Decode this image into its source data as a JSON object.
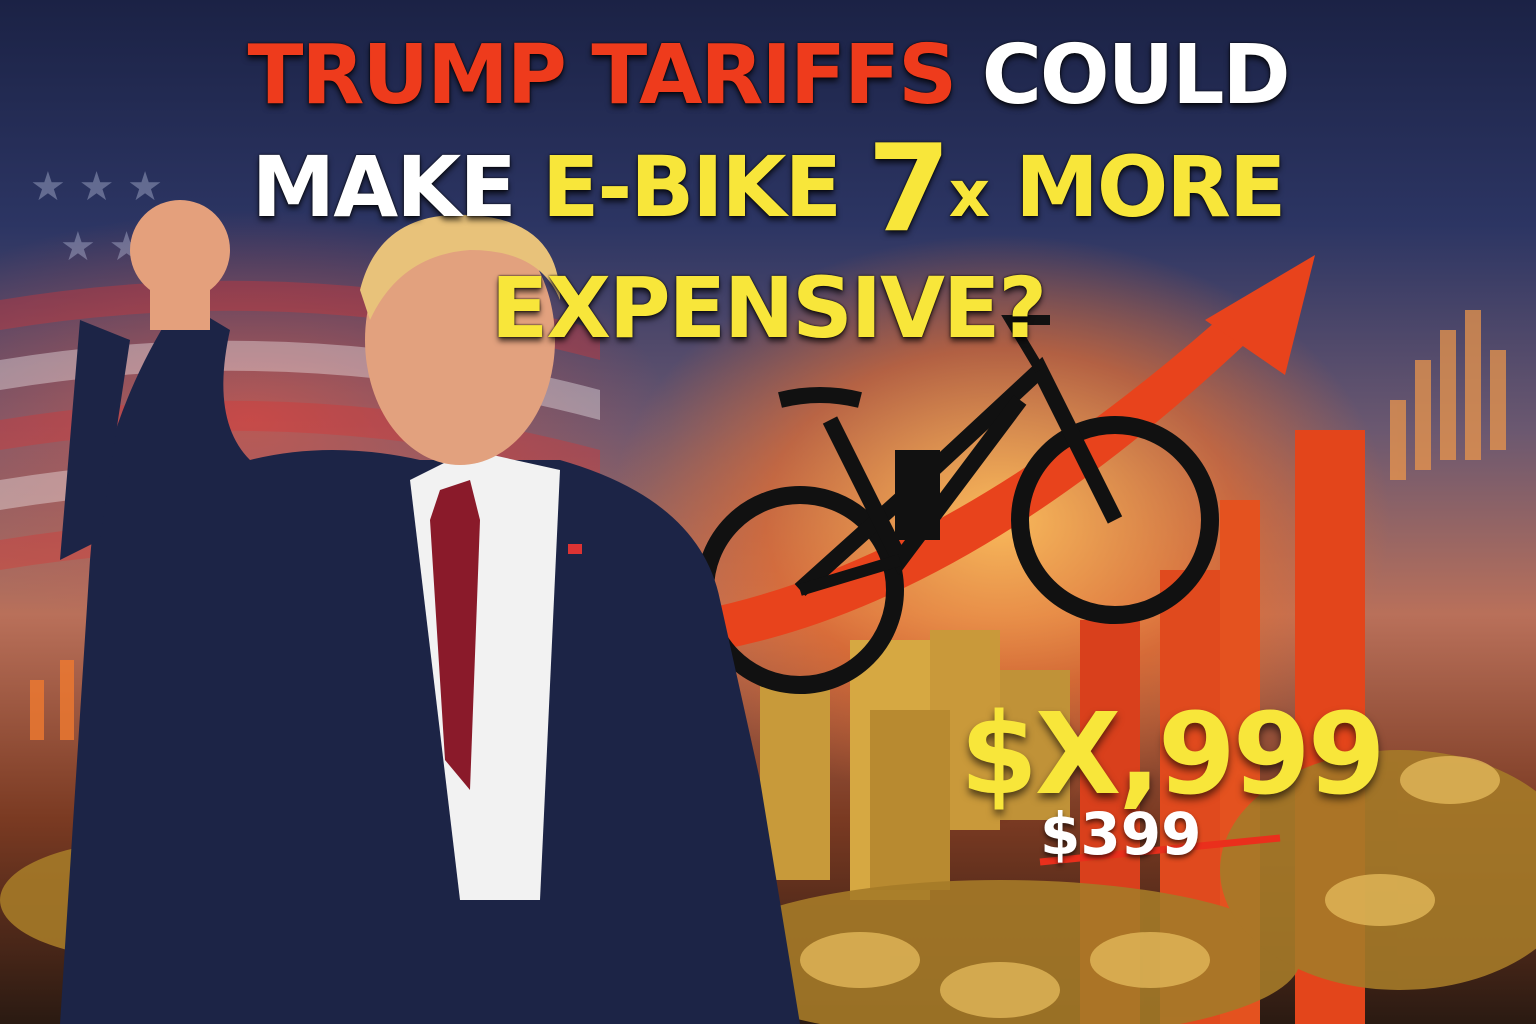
{
  "headline": {
    "line1_red": "TRUMP TARIFFS",
    "line1_white": "COULD",
    "line2_white": "MAKE",
    "line2_yellow": "E-BIKE",
    "multiplier_number": "7",
    "multiplier_suffix": "x",
    "line2_rest": "MORE EXPENSIVE?"
  },
  "price": {
    "new": "$X,999",
    "old": "$399",
    "old_struck": true
  },
  "colors": {
    "accent_red": "#ee3b1c",
    "accent_yellow": "#f8e63a",
    "suit_navy": "#1c2446",
    "tie_red": "#8a1a2a"
  },
  "imagery": [
    "american-flag",
    "person-raised-fist",
    "e-bike-silhouette",
    "rising-arrow",
    "bar-chart",
    "coin-stacks"
  ]
}
